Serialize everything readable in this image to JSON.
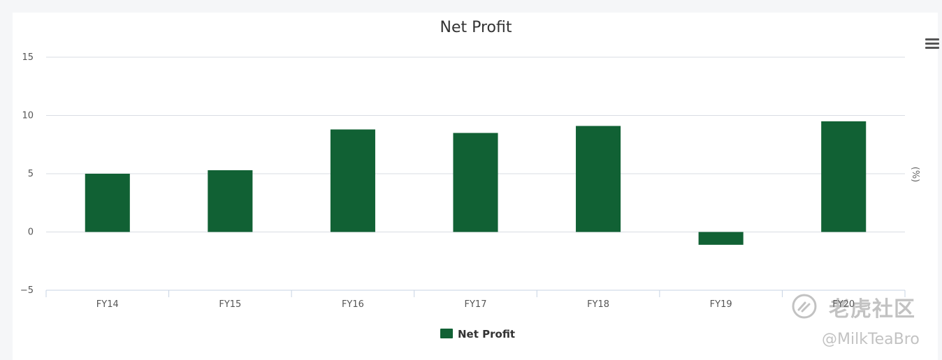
{
  "chart_data": {
    "type": "bar",
    "title": "Net Profit",
    "categories": [
      "FY14",
      "FY15",
      "FY16",
      "FY17",
      "FY18",
      "FY19",
      "FY20"
    ],
    "series": [
      {
        "name": "Net Profit",
        "values": [
          5.0,
          5.3,
          8.8,
          8.5,
          9.1,
          -1.1,
          9.5
        ],
        "color": "#116134"
      }
    ],
    "y_ticks": [
      "15",
      "10",
      "5",
      "0",
      "−5"
    ],
    "ylim": [
      -5,
      15
    ],
    "y2label": "(%)",
    "grid": true,
    "legend": "bottom-center"
  },
  "watermark": {
    "brand": "老虎社区",
    "user": "@MilkTeaBro",
    "icon": "tiger-logo-icon"
  },
  "toolbar": {
    "menu_icon": "hamburger-menu-icon"
  }
}
